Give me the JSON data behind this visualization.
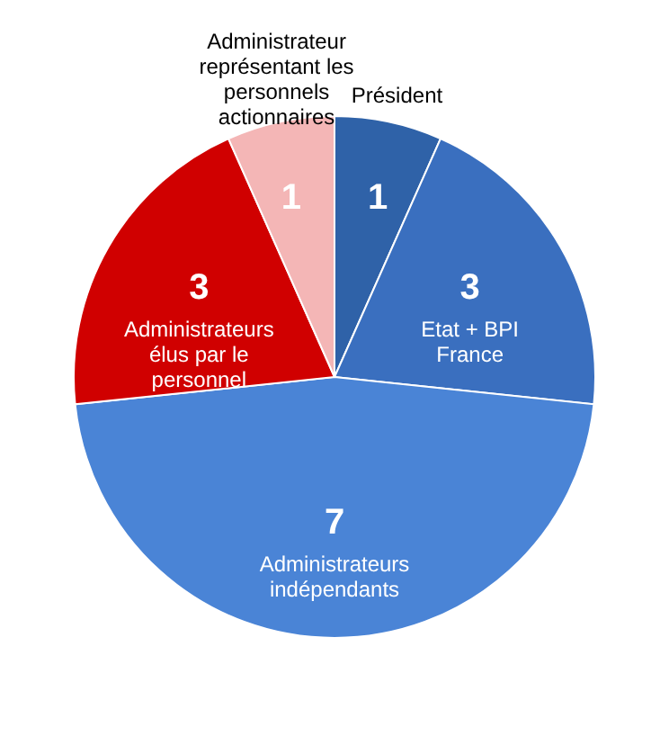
{
  "chart_data": {
    "type": "pie",
    "categories": [
      "Président",
      "Etat + BPI France",
      "Administrateurs indépendants",
      "Administrateurs élus par le personnel",
      "Administrateur représentant les personnels actionnaires"
    ],
    "values": [
      1,
      3,
      7,
      3,
      1
    ],
    "colors": [
      "#2f62a8",
      "#3a6fbf",
      "#4a84d6",
      "#d00000",
      "#f4b6b6"
    ],
    "data_labels": true
  }
}
